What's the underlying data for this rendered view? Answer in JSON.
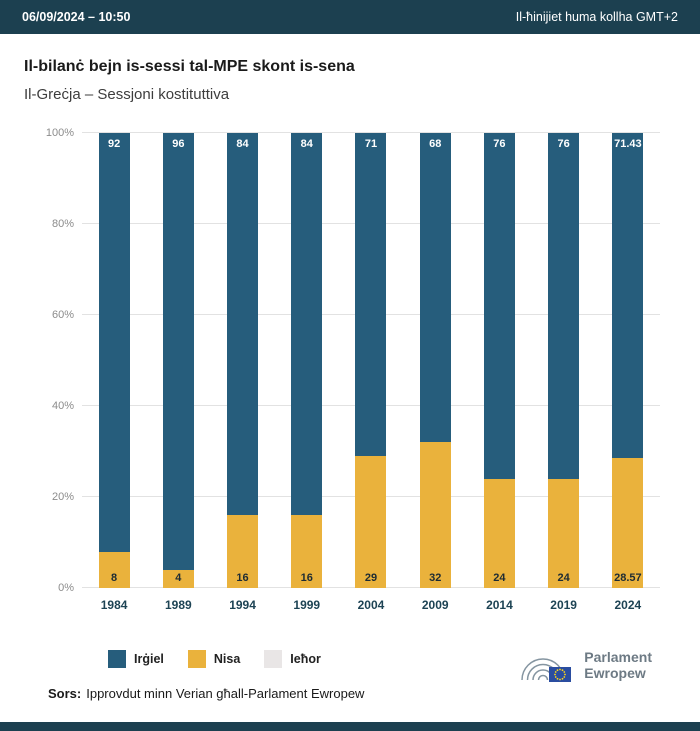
{
  "header": {
    "datetime": "06/09/2024 – 10:50",
    "timezone_note": "Il-ħinijiet huma kollha GMT+2"
  },
  "title": "Il-bilanċ bejn is-sessi tal-MPE skont is-sena",
  "subtitle": "Il-Greċja – Sessjoni kostituttiva",
  "colors": {
    "header_bar": "#1c4050",
    "male_bar": "#265d7c",
    "female_bar": "#eab23c",
    "other_bar": "#e9e6e6",
    "category_label": "#1d4354"
  },
  "chart_data": {
    "type": "bar",
    "variant": "stacked-percent",
    "title": "Il-bilanċ bejn is-sessi tal-MPE skont is-sena",
    "subtitle": "Il-Greċja – Sessjoni kostituttiva",
    "categories": [
      "1984",
      "1989",
      "1994",
      "1999",
      "2004",
      "2009",
      "2014",
      "2019",
      "2024"
    ],
    "series": [
      {
        "name": "Irġiel",
        "color": "#265d7c",
        "values": [
          92,
          96,
          84,
          84,
          71,
          68,
          76,
          76,
          71.43
        ],
        "labels": [
          "92",
          "96",
          "84",
          "84",
          "71",
          "68",
          "76",
          "76",
          "71.43"
        ]
      },
      {
        "name": "Nisa",
        "color": "#eab23c",
        "values": [
          8,
          4,
          16,
          16,
          29,
          32,
          24,
          24,
          28.57
        ],
        "labels": [
          "8",
          "4",
          "16",
          "16",
          "29",
          "32",
          "24",
          "24",
          "28.57"
        ]
      },
      {
        "name": "Ieħor",
        "color": "#e9e6e6",
        "values": [
          0,
          0,
          0,
          0,
          0,
          0,
          0,
          0,
          0
        ],
        "labels": [
          "",
          "",
          "",
          "",
          "",
          "",
          "",
          "",
          ""
        ]
      }
    ],
    "y_ticks": [
      "0%",
      "20%",
      "40%",
      "60%",
      "80%",
      "100%"
    ],
    "ylim": [
      0,
      100
    ],
    "grid": true,
    "legend_position": "bottom-left"
  },
  "source": {
    "label": "Sors:",
    "text": "Ipprovdut minn Verian għall-Parlament Ewropew"
  },
  "logo": {
    "line1": "Parlament",
    "line2": "Ewropew"
  }
}
